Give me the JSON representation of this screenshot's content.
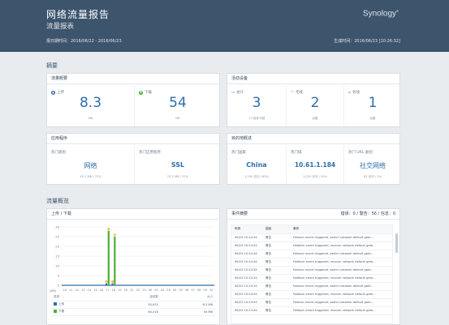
{
  "header": {
    "title": "网络流量报告",
    "subtitle": "流量报表",
    "range": "报日期时间：2016/06/22 - 2016/06/23",
    "generated": "生成时间：2016/06/23 [10:26:32]",
    "logo": "Synology",
    "logo_mark": "®"
  },
  "sections": {
    "summary": "摘要",
    "traffic": "流量概览"
  },
  "traffic_overview": {
    "title": "流量概要",
    "upload": {
      "label": "上传",
      "value": "8.3",
      "unit": "MB",
      "icon": "upload-arrow-icon"
    },
    "download": {
      "label": "下载",
      "value": "54",
      "unit": "MB",
      "icon": "download-arrow-icon"
    }
  },
  "devices": {
    "title": "活动设备",
    "items": [
      {
        "label": "总计",
        "value": "3",
        "sub": "+3 组件不超",
        "icon": "monitor-icon"
      },
      {
        "label": "无线",
        "value": "2",
        "sub": "设备",
        "icon": "wifi-icon"
      },
      {
        "label": "有线",
        "value": "1",
        "sub": "设备",
        "icon": "home-icon"
      }
    ]
  },
  "apps": {
    "title": "应用程序",
    "items": [
      {
        "label": "热门类别",
        "value": "网络",
        "sub": "45.1 MB / 72%"
      },
      {
        "label": "热门应用程序",
        "value": "SSL",
        "sub": "23.2 MB / 37%"
      }
    ]
  },
  "destinations": {
    "title": "目的地概述",
    "items": [
      {
        "label": "热门国家",
        "value": "China",
        "sub": "1,190 访问 / 60%"
      },
      {
        "label": "热门域",
        "value": "10.61.1.184",
        "sub": "1,035 访问 / 50%"
      },
      {
        "label": "热门 URL 类别",
        "value": "社交网络",
        "sub": "62 访问 / 2%"
      }
    ]
  },
  "chart_panel": {
    "title": "上传 / 下载",
    "unit": "(MB)"
  },
  "chart_data": {
    "type": "bar",
    "ylim": [
      0,
      30
    ],
    "yticks": [
      0,
      5,
      10,
      15,
      20,
      25,
      30
    ],
    "categories": [
      "10",
      "11",
      "12",
      "13",
      "14",
      "15",
      "16",
      "17",
      "18",
      "19",
      "20",
      "21",
      "22",
      "23",
      "00",
      "01",
      "02",
      "03",
      "04",
      "05",
      "06",
      "07",
      "08",
      "09",
      "10"
    ],
    "series": [
      {
        "name": "上传",
        "color": "#2d6ea8",
        "values": [
          0,
          0,
          0,
          0,
          0,
          0,
          0,
          1,
          1,
          0,
          0,
          0,
          0,
          0,
          0,
          0,
          0,
          0,
          0,
          0,
          0,
          0,
          0,
          0,
          0
        ]
      },
      {
        "name": "下载",
        "color": "#4caf3a",
        "values": [
          0,
          0,
          0,
          0,
          0,
          0,
          0,
          28,
          25,
          0,
          0,
          0,
          0,
          0,
          0,
          0,
          0,
          0,
          0,
          0,
          0,
          0,
          0,
          0,
          0
        ]
      }
    ]
  },
  "legend": {
    "headers": [
      "类型",
      "连线数",
      "大小"
    ],
    "rows": [
      {
        "name": "上传",
        "count": "50,615",
        "size": "8.3 MB",
        "color": "#2d6ea8"
      },
      {
        "name": "下载",
        "count": "60,016",
        "size": "54 MB",
        "color": "#4caf3a"
      }
    ]
  },
  "events": {
    "title": "事件摘要",
    "counts": "错误：0 / 警告：56 / 信息：0",
    "headers": [
      "时间",
      "层级",
      "事件"
    ],
    "rows": [
      {
        "time": "06/23 10:24:54",
        "level": "警告",
        "text": "Failover event triggered, switch network default gate..."
      },
      {
        "time": "06/23 10:24:54",
        "level": "警告",
        "text": "Failback event triggered, recover network default gate..."
      },
      {
        "time": "06/23 10:24:44",
        "level": "警告",
        "text": "Failover event triggered, switch network default gate..."
      },
      {
        "time": "06/23 10:24:44",
        "level": "警告",
        "text": "Failback event triggered, recover network default gate..."
      },
      {
        "time": "06/23 10:24:34",
        "level": "警告",
        "text": "Failover event triggered, switch network default gate..."
      },
      {
        "time": "06/23 10:24:24",
        "level": "警告",
        "text": "Failback event triggered, recover network default gate..."
      },
      {
        "time": "06/23 10:24:14",
        "level": "警告",
        "text": "Failover event triggered, switch network default gate..."
      },
      {
        "time": "06/23 10:24:04",
        "level": "警告",
        "text": "Failback event triggered, recover network default gate..."
      },
      {
        "time": "06/23 10:23:54",
        "level": "警告",
        "text": "Failover event triggered, switch network default gate..."
      },
      {
        "time": "06/23 10:23:44",
        "level": "警告",
        "text": "Failback event triggered, recover network default gate..."
      }
    ]
  }
}
